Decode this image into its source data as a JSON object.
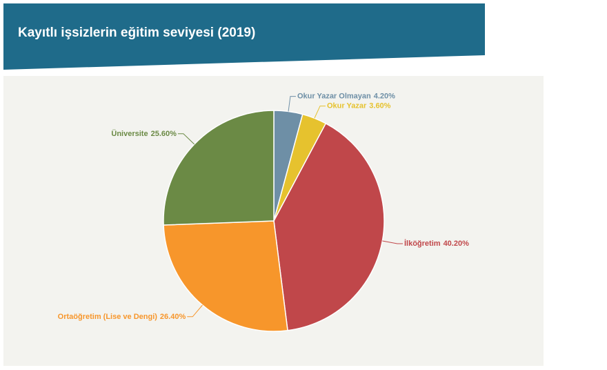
{
  "chart_data": {
    "type": "pie",
    "title": "Kayıtlı işsizlerin eğitim seviyesi (2019)",
    "categories": [
      "Okur Yazar Olmayan",
      "Okur Yazar",
      "İlköğretim",
      "Ortaöğretim (Lise ve Dengi)",
      "Üniversite"
    ],
    "values": [
      4.2,
      3.6,
      40.2,
      26.4,
      25.6
    ],
    "value_labels": [
      "4.20%",
      "3.60%",
      "40.20%",
      "26.40%",
      "25.60%"
    ],
    "colors": [
      "#6e8fa6",
      "#e6c22e",
      "#c0474a",
      "#f7962b",
      "#6b8a45"
    ]
  }
}
